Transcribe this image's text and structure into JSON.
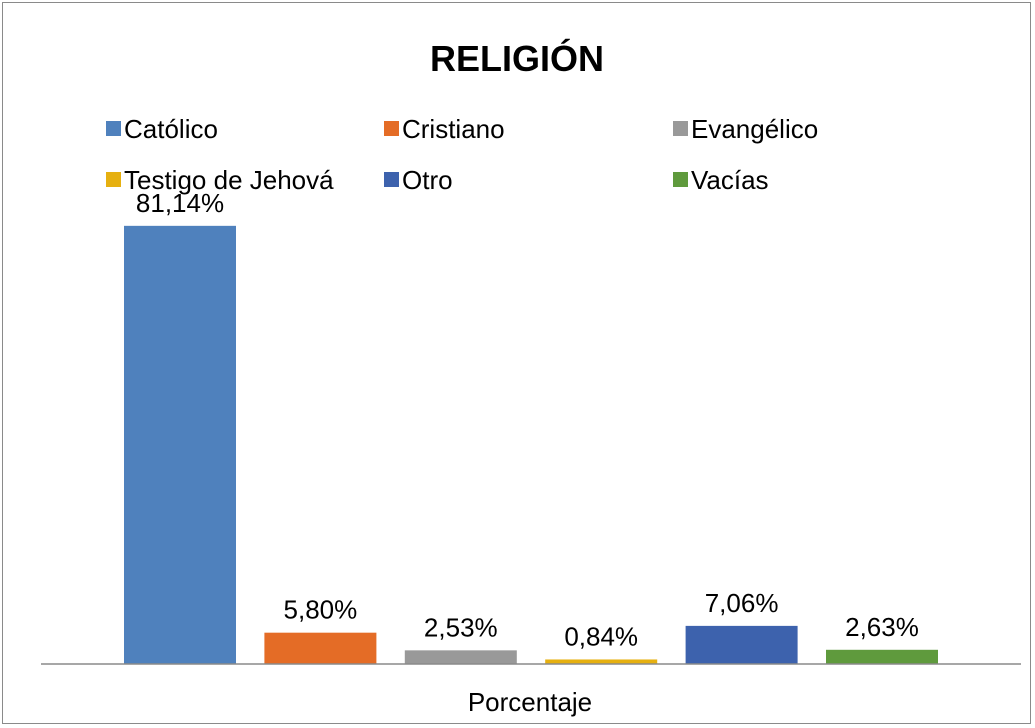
{
  "chart_data": {
    "type": "bar",
    "title": "RELIGIÓN",
    "xlabel": "Porcentaje",
    "ylabel": "",
    "ylim": [
      0,
      90
    ],
    "grid": false,
    "legend_position": "top",
    "categories": [
      "Porcentaje"
    ],
    "series": [
      {
        "name": "Católico",
        "values": [
          81.14
        ],
        "label": "81,14%",
        "color": "#4f81bd"
      },
      {
        "name": "Cristiano",
        "values": [
          5.8
        ],
        "label": "5,80%",
        "color": "#e46c26"
      },
      {
        "name": "Evangélico",
        "values": [
          2.53
        ],
        "label": "2,53%",
        "color": "#999999"
      },
      {
        "name": "Testigo de Jehová",
        "values": [
          0.84
        ],
        "label": "0,84%",
        "color": "#e6b010"
      },
      {
        "name": "Otro",
        "values": [
          7.06
        ],
        "label": "7,06%",
        "color": "#3d62ad"
      },
      {
        "name": "Vacías",
        "values": [
          2.63
        ],
        "label": "2,63%",
        "color": "#5f9a3d"
      }
    ]
  }
}
